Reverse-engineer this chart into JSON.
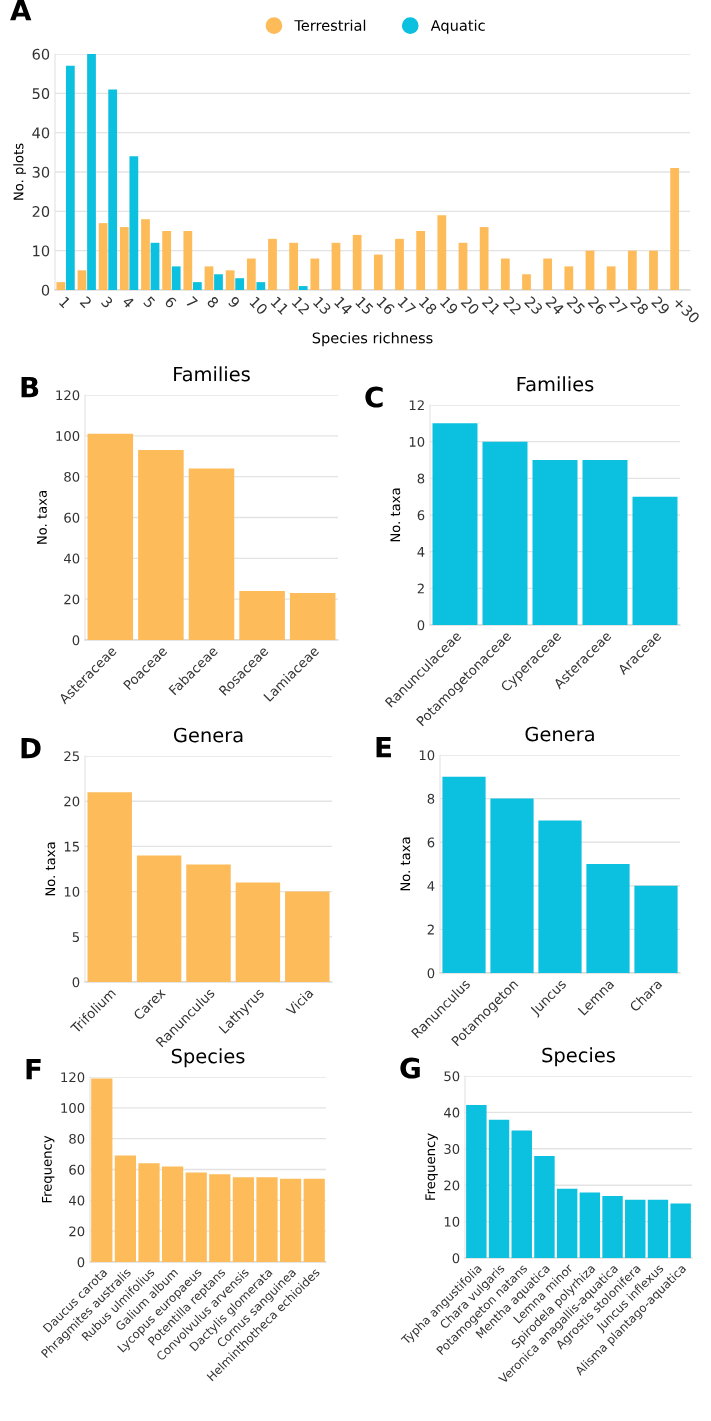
{
  "chart_data": [
    {
      "type": "bar",
      "annotations": [
        "A"
      ],
      "xlabel": "Species richness",
      "ylabel": "No. plots",
      "categories": [
        "1",
        "2",
        "3",
        "4",
        "5",
        "6",
        "7",
        "8",
        "9",
        "10",
        "11",
        "12",
        "13",
        "14",
        "15",
        "16",
        "17",
        "18",
        "19",
        "20",
        "21",
        "22",
        "23",
        "24",
        "25",
        "26",
        "27",
        "28",
        "29",
        "+30"
      ],
      "series": [
        {
          "name": "Terrestrial",
          "color": "#fdbb5a",
          "values": [
            2,
            5,
            17,
            16,
            18,
            15,
            15,
            6,
            5,
            8,
            13,
            12,
            8,
            12,
            14,
            9,
            13,
            15,
            19,
            12,
            16,
            8,
            4,
            8,
            6,
            10,
            6,
            10,
            10,
            31
          ]
        },
        {
          "name": "Aquatic",
          "color": "#0cc0df",
          "values": [
            57,
            60,
            51,
            34,
            12,
            6,
            2,
            4,
            3,
            2,
            0,
            1,
            0,
            0,
            0,
            0,
            0,
            0,
            0,
            0,
            0,
            0,
            0,
            0,
            0,
            0,
            0,
            0,
            0,
            0
          ]
        }
      ],
      "ylim": [
        0,
        60
      ],
      "yticks": [
        0,
        10,
        20,
        30,
        40,
        50,
        60
      ],
      "grid": "y",
      "legend": "top"
    },
    {
      "type": "bar",
      "annotations": [
        "B"
      ],
      "title": "Families",
      "ylabel": "No. taxa",
      "categories": [
        "Asteraceae",
        "Poaceae",
        "Fabaceae",
        "Rosaceae",
        "Lamiaceae"
      ],
      "values": [
        101,
        93,
        84,
        24,
        23
      ],
      "color": "#fdbb5a",
      "ylim": [
        0,
        120
      ],
      "yticks": [
        0,
        20,
        40,
        60,
        80,
        100,
        120
      ],
      "grid": "y"
    },
    {
      "type": "bar",
      "annotations": [
        "C"
      ],
      "title": "Families",
      "ylabel": "No. taxa",
      "categories": [
        "Ranunculaceae",
        "Potamogetonaceae",
        "Cyperaceae",
        "Asteraceae",
        "Araceae"
      ],
      "values": [
        11,
        10,
        9,
        9,
        7
      ],
      "color": "#0cc0df",
      "ylim": [
        0,
        12
      ],
      "yticks": [
        0,
        2,
        4,
        6,
        8,
        10,
        12
      ],
      "grid": "y"
    },
    {
      "type": "bar",
      "annotations": [
        "D"
      ],
      "title": "Genera",
      "ylabel": "No. taxa",
      "categories": [
        "Trifolium",
        "Carex",
        "Ranunculus",
        "Lathyrus",
        "Vicia"
      ],
      "values": [
        21,
        14,
        13,
        11,
        10
      ],
      "color": "#fdbb5a",
      "ylim": [
        0,
        25
      ],
      "yticks": [
        0,
        5,
        10,
        15,
        20,
        25
      ],
      "grid": "y"
    },
    {
      "type": "bar",
      "annotations": [
        "E"
      ],
      "title": "Genera",
      "ylabel": "No. taxa",
      "categories": [
        "Ranunculus",
        "Potamogeton",
        "Juncus",
        "Lemna",
        "Chara"
      ],
      "values": [
        9,
        8,
        7,
        5,
        4
      ],
      "color": "#0cc0df",
      "ylim": [
        0,
        10
      ],
      "yticks": [
        0,
        2,
        4,
        6,
        8,
        10
      ],
      "grid": "y"
    },
    {
      "type": "bar",
      "annotations": [
        "F"
      ],
      "title": "Species",
      "ylabel": "Frequency",
      "categories": [
        "Daucus carota",
        "Phragmites australis",
        "Rubus ulmifolius",
        "Galium album",
        "Lycopus europaeus",
        "Potentilla reptans",
        "Convolvulus arvensis",
        "Dactylis glomerata",
        "Cornus sanguinea",
        "Helminthotheca echioides"
      ],
      "values": [
        119,
        69,
        64,
        62,
        58,
        57,
        55,
        55,
        54,
        54
      ],
      "color": "#fdbb5a",
      "ylim": [
        0,
        120
      ],
      "yticks": [
        0,
        20,
        40,
        60,
        80,
        100,
        120
      ],
      "grid": "y"
    },
    {
      "type": "bar",
      "annotations": [
        "G"
      ],
      "title": "Species",
      "ylabel": "Frequency",
      "categories": [
        "Typha angustifolia",
        "Chara vulgaris",
        "Potamogeton natans",
        "Mentha aquatica",
        "Lemna minor",
        "Spirodela polyrhiza",
        "Veronica anagallis-aquatica",
        "Agrostis stolonifera",
        "Juncus inflexus",
        "Alisma plantago-aquatica"
      ],
      "values": [
        42,
        38,
        35,
        28,
        19,
        18,
        17,
        16,
        16,
        15
      ],
      "color": "#0cc0df",
      "ylim": [
        0,
        50
      ],
      "yticks": [
        0,
        10,
        20,
        30,
        40,
        50
      ],
      "grid": "y"
    }
  ]
}
